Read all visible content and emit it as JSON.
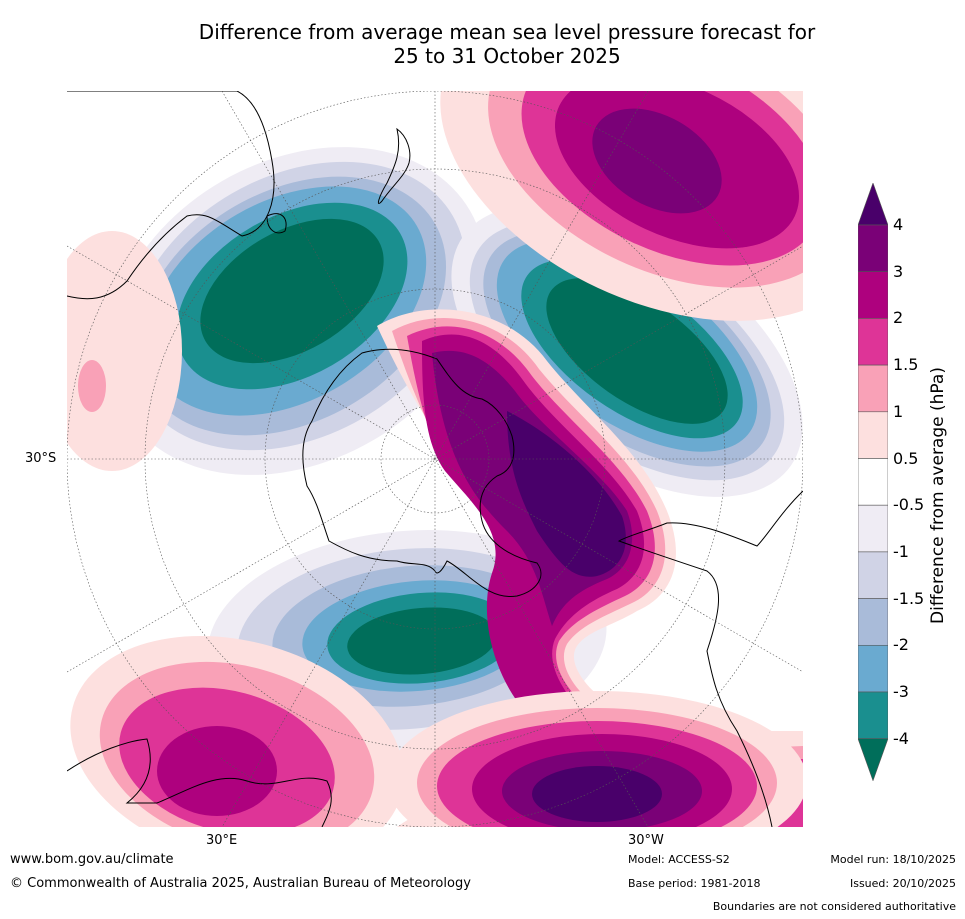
{
  "title_line1": "Difference from average mean sea level pressure forecast for",
  "title_line2": "25 to 31 October 2025",
  "map": {
    "lat_label": "30°S",
    "lon_label_east": "30°E",
    "lon_label_west": "30°W",
    "projection": "south polar stereographic",
    "colors": {
      "v_lt_-4": "#006e5a",
      "v_-4_-3": "#1a8f8f",
      "v_-3_-2": "#6aaad0",
      "v_-2_-1.5": "#a9bbd9",
      "v_-1.5_-1": "#d0d3e6",
      "v_-1_-0.5": "#efecf4",
      "v_-0.5_0.5": "#ffffff",
      "v_0.5_1": "#fde0df",
      "v_1_1.5": "#f9a1b7",
      "v_1.5_2": "#de3497",
      "v_2_3": "#ae017e",
      "v_3_4": "#7a0177",
      "v_gt_4": "#49006a"
    }
  },
  "colorbar": {
    "title": "Difference from average (hPa)",
    "ticks": [
      "4",
      "3",
      "2",
      "1.5",
      "1",
      "0.5",
      "-0.5",
      "-1",
      "-1.5",
      "-2",
      "-3",
      "-4"
    ],
    "colors": [
      "#49006a",
      "#7a0177",
      "#ae017e",
      "#de3497",
      "#f9a1b7",
      "#fde0df",
      "#ffffff",
      "#efecf4",
      "#d0d3e6",
      "#a9bbd9",
      "#6aaad0",
      "#1a8f8f",
      "#006e5a"
    ]
  },
  "footer": {
    "website": "www.bom.gov.au/climate",
    "copyright": "© Commonwealth of Australia 2025, Australian Bureau of Meteorology",
    "model": "Model: ACCESS-S2",
    "base_period": "Base period: 1981-2018",
    "model_run": "Model run: 18/10/2025",
    "issued": "Issued: 20/10/2025",
    "disclaimer": "Boundaries are not considered authoritative"
  }
}
